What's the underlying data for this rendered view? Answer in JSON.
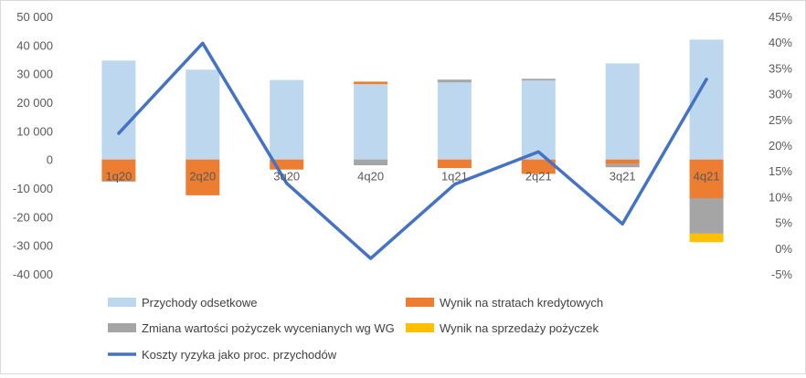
{
  "chart_data": {
    "type": "bar",
    "stacked": true,
    "categories": [
      "1q20",
      "2q20",
      "3q20",
      "4q20",
      "1q21",
      "2q21",
      "3q21",
      "4q21"
    ],
    "y_left": {
      "range": [
        -40000,
        50000
      ],
      "ticks": [
        50000,
        40000,
        30000,
        20000,
        10000,
        0,
        -10000,
        -20000,
        -30000,
        -40000
      ],
      "tick_labels": [
        "50 000",
        "40 000",
        "30 000",
        "20 000",
        "10 000",
        "0",
        "-10 000",
        "-20 000",
        "-30 000",
        "-40 000"
      ]
    },
    "y_right": {
      "range": [
        -5,
        45
      ],
      "ticks": [
        45,
        40,
        35,
        30,
        25,
        20,
        15,
        10,
        5,
        0,
        -5
      ],
      "tick_labels": [
        "45%",
        "40%",
        "35%",
        "30%",
        "25%",
        "20%",
        "15%",
        "10%",
        "5%",
        "0%",
        "-5%"
      ]
    },
    "series": [
      {
        "name": "Przychody odsetkowe",
        "kind": "bar",
        "color": "#bdd7ee",
        "values": [
          34600,
          31400,
          27800,
          26300,
          26900,
          27600,
          33600,
          41900
        ]
      },
      {
        "name": "Wynik na stratach kredytowych",
        "kind": "bar",
        "color": "#ed7d31",
        "values": [
          -7500,
          -12500,
          -3500,
          900,
          -3000,
          -5000,
          -1500,
          -13500
        ]
      },
      {
        "name": "Zmiana wartości pożyczek wycenianych wg WG",
        "kind": "bar",
        "color": "#a5a5a5",
        "values": [
          -300,
          0,
          0,
          -2000,
          1000,
          600,
          -1200,
          -12400
        ]
      },
      {
        "name": "Wynik na sprzedaży pożyczek",
        "kind": "bar",
        "color": "#ffc000",
        "values": [
          0,
          0,
          0,
          0,
          0,
          0,
          0,
          -3000
        ]
      },
      {
        "name": "Koszty ryzyka jako proc. przychodów",
        "kind": "line",
        "axis": "right",
        "color": "#4472c4",
        "values": [
          22.3,
          39.8,
          12.6,
          -2.0,
          12.4,
          18.7,
          4.7,
          32.8
        ]
      }
    ],
    "legend_position": "bottom",
    "grid": false
  }
}
